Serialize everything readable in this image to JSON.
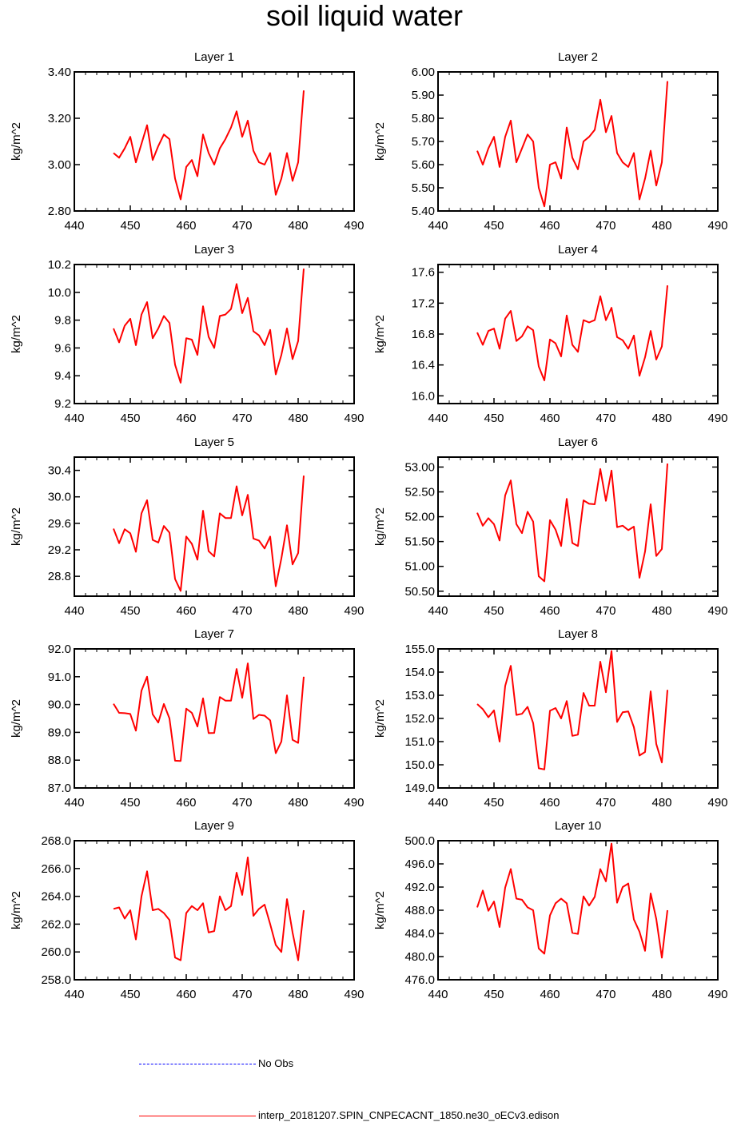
{
  "title": "soil liquid water",
  "legend": {
    "items": [
      {
        "label": "No Obs",
        "color": "#0000ff",
        "style": "dashed"
      },
      {
        "label": "interp_20181207.SPIN_CNPECACNT_1850.ne30_oECv3.edison",
        "color": "#ff0000",
        "style": "solid"
      }
    ]
  },
  "chart_data": [
    {
      "type": "line",
      "title": "Layer 1",
      "xlabel": "",
      "ylabel": "kg/m^2",
      "xlim": [
        440,
        490
      ],
      "xticks": [
        440,
        450,
        460,
        470,
        480,
        490
      ],
      "ylim": [
        2.8,
        3.4
      ],
      "yticks": [
        "2.80",
        "3.00",
        "3.20",
        "3.40"
      ],
      "x": [
        447,
        448,
        449,
        450,
        451,
        452,
        453,
        454,
        455,
        456,
        457,
        458,
        459,
        460,
        461,
        462,
        463,
        464,
        465,
        466,
        467,
        468,
        469,
        470,
        471,
        472,
        473,
        474,
        475,
        476,
        477,
        478,
        479,
        480,
        481
      ],
      "series": [
        {
          "color": "#ff0000",
          "values": [
            3.05,
            3.03,
            3.07,
            3.12,
            3.01,
            3.09,
            3.17,
            3.02,
            3.08,
            3.13,
            3.11,
            2.94,
            2.85,
            2.99,
            3.02,
            2.95,
            3.13,
            3.05,
            3.0,
            3.07,
            3.11,
            3.16,
            3.23,
            3.12,
            3.19,
            3.06,
            3.01,
            3.0,
            3.05,
            2.87,
            2.94,
            3.05,
            2.93,
            3.01,
            3.32
          ]
        }
      ]
    },
    {
      "type": "line",
      "title": "Layer 2",
      "xlabel": "",
      "ylabel": "kg/m^2",
      "xlim": [
        440,
        490
      ],
      "xticks": [
        440,
        450,
        460,
        470,
        480,
        490
      ],
      "ylim": [
        5.4,
        6.0
      ],
      "yticks": [
        "5.40",
        "5.50",
        "5.60",
        "5.70",
        "5.80",
        "5.90",
        "6.00"
      ],
      "x": [
        447,
        448,
        449,
        450,
        451,
        452,
        453,
        454,
        455,
        456,
        457,
        458,
        459,
        460,
        461,
        462,
        463,
        464,
        465,
        466,
        467,
        468,
        469,
        470,
        471,
        472,
        473,
        474,
        475,
        476,
        477,
        478,
        479,
        480,
        481
      ],
      "series": [
        {
          "color": "#ff0000",
          "values": [
            5.66,
            5.6,
            5.67,
            5.72,
            5.59,
            5.72,
            5.79,
            5.61,
            5.67,
            5.73,
            5.7,
            5.5,
            5.42,
            5.6,
            5.61,
            5.54,
            5.76,
            5.63,
            5.58,
            5.7,
            5.72,
            5.75,
            5.88,
            5.74,
            5.81,
            5.65,
            5.61,
            5.59,
            5.65,
            5.45,
            5.54,
            5.66,
            5.51,
            5.61,
            5.96
          ]
        }
      ]
    },
    {
      "type": "line",
      "title": "Layer 3",
      "xlabel": "",
      "ylabel": "kg/m^2",
      "xlim": [
        440,
        490
      ],
      "xticks": [
        440,
        450,
        460,
        470,
        480,
        490
      ],
      "ylim": [
        9.2,
        10.2
      ],
      "yticks": [
        "9.2",
        "9.4",
        "9.6",
        "9.8",
        "10.0",
        "10.2"
      ],
      "x": [
        447,
        448,
        449,
        450,
        451,
        452,
        453,
        454,
        455,
        456,
        457,
        458,
        459,
        460,
        461,
        462,
        463,
        464,
        465,
        466,
        467,
        468,
        469,
        470,
        471,
        472,
        473,
        474,
        475,
        476,
        477,
        478,
        479,
        480,
        481
      ],
      "series": [
        {
          "color": "#ff0000",
          "values": [
            9.74,
            9.64,
            9.76,
            9.81,
            9.62,
            9.84,
            9.93,
            9.67,
            9.74,
            9.83,
            9.78,
            9.48,
            9.35,
            9.67,
            9.66,
            9.55,
            9.9,
            9.68,
            9.6,
            9.83,
            9.84,
            9.88,
            10.06,
            9.85,
            9.96,
            9.72,
            9.69,
            9.62,
            9.73,
            9.41,
            9.55,
            9.74,
            9.52,
            9.65,
            10.17
          ]
        }
      ]
    },
    {
      "type": "line",
      "title": "Layer 4",
      "xlabel": "",
      "ylabel": "kg/m^2",
      "xlim": [
        440,
        490
      ],
      "xticks": [
        440,
        450,
        460,
        470,
        480,
        490
      ],
      "ylim": [
        15.9,
        17.7
      ],
      "yticks": [
        "16.0",
        "16.4",
        "16.8",
        "17.2",
        "17.6"
      ],
      "x": [
        447,
        448,
        449,
        450,
        451,
        452,
        453,
        454,
        455,
        456,
        457,
        458,
        459,
        460,
        461,
        462,
        463,
        464,
        465,
        466,
        467,
        468,
        469,
        470,
        471,
        472,
        473,
        474,
        475,
        476,
        477,
        478,
        479,
        480,
        481
      ],
      "series": [
        {
          "color": "#ff0000",
          "values": [
            16.82,
            16.66,
            16.84,
            16.87,
            16.61,
            17.0,
            17.1,
            16.71,
            16.77,
            16.9,
            16.85,
            16.38,
            16.2,
            16.73,
            16.68,
            16.51,
            17.04,
            16.66,
            16.57,
            16.98,
            16.95,
            16.98,
            17.29,
            16.98,
            17.14,
            16.76,
            16.72,
            16.61,
            16.78,
            16.26,
            16.5,
            16.84,
            16.47,
            16.64,
            17.43
          ]
        }
      ]
    },
    {
      "type": "line",
      "title": "Layer 5",
      "xlabel": "",
      "ylabel": "kg/m^2",
      "xlim": [
        440,
        490
      ],
      "xticks": [
        440,
        450,
        460,
        470,
        480,
        490
      ],
      "ylim": [
        28.5,
        30.6
      ],
      "yticks": [
        "28.8",
        "29.2",
        "29.6",
        "30.0",
        "30.4"
      ],
      "x": [
        447,
        448,
        449,
        450,
        451,
        452,
        453,
        454,
        455,
        456,
        457,
        458,
        459,
        460,
        461,
        462,
        463,
        464,
        465,
        466,
        467,
        468,
        469,
        470,
        471,
        472,
        473,
        474,
        475,
        476,
        477,
        478,
        479,
        480,
        481
      ],
      "series": [
        {
          "color": "#ff0000",
          "values": [
            29.52,
            29.3,
            29.51,
            29.45,
            29.17,
            29.75,
            29.95,
            29.35,
            29.31,
            29.56,
            29.46,
            28.76,
            28.58,
            29.4,
            29.29,
            29.05,
            29.79,
            29.18,
            29.1,
            29.75,
            29.68,
            29.68,
            30.16,
            29.72,
            30.03,
            29.37,
            29.34,
            29.22,
            29.4,
            28.65,
            29.07,
            29.57,
            28.98,
            29.15,
            30.32
          ]
        }
      ]
    },
    {
      "type": "line",
      "title": "Layer 6",
      "xlabel": "",
      "ylabel": "kg/m^2",
      "xlim": [
        440,
        490
      ],
      "xticks": [
        440,
        450,
        460,
        470,
        480,
        490
      ],
      "ylim": [
        50.4,
        53.2
      ],
      "yticks": [
        "50.50",
        "51.00",
        "51.50",
        "52.00",
        "52.50",
        "53.00"
      ],
      "x": [
        447,
        448,
        449,
        450,
        451,
        452,
        453,
        454,
        455,
        456,
        457,
        458,
        459,
        460,
        461,
        462,
        463,
        464,
        465,
        466,
        467,
        468,
        469,
        470,
        471,
        472,
        473,
        474,
        475,
        476,
        477,
        478,
        479,
        480,
        481
      ],
      "series": [
        {
          "color": "#ff0000",
          "values": [
            52.08,
            51.82,
            51.97,
            51.85,
            51.52,
            52.43,
            52.73,
            51.85,
            51.67,
            52.1,
            51.9,
            50.8,
            50.7,
            51.93,
            51.74,
            51.41,
            52.36,
            51.47,
            51.41,
            52.33,
            52.26,
            52.25,
            52.96,
            52.32,
            52.93,
            51.79,
            51.82,
            51.73,
            51.8,
            50.77,
            51.3,
            52.25,
            51.21,
            51.35,
            53.07
          ]
        }
      ]
    },
    {
      "type": "line",
      "title": "Layer 7",
      "xlabel": "",
      "ylabel": "kg/m^2",
      "xlim": [
        440,
        490
      ],
      "xticks": [
        440,
        450,
        460,
        470,
        480,
        490
      ],
      "ylim": [
        87.0,
        92.0
      ],
      "yticks": [
        "87.0",
        "88.0",
        "89.0",
        "90.0",
        "91.0",
        "92.0"
      ],
      "x": [
        447,
        448,
        449,
        450,
        451,
        452,
        453,
        454,
        455,
        456,
        457,
        458,
        459,
        460,
        461,
        462,
        463,
        464,
        465,
        466,
        467,
        468,
        469,
        470,
        471,
        472,
        473,
        474,
        475,
        476,
        477,
        478,
        479,
        480,
        481
      ],
      "series": [
        {
          "color": "#ff0000",
          "values": [
            90.03,
            89.7,
            89.69,
            89.66,
            89.06,
            90.5,
            91.0,
            89.65,
            89.35,
            90.02,
            89.5,
            87.98,
            87.97,
            89.85,
            89.7,
            89.21,
            90.22,
            88.97,
            88.98,
            90.27,
            90.14,
            90.14,
            91.28,
            90.24,
            91.48,
            89.48,
            89.63,
            89.6,
            89.43,
            88.25,
            88.67,
            90.33,
            88.73,
            88.62,
            91.0
          ]
        }
      ]
    },
    {
      "type": "line",
      "title": "Layer 8",
      "xlabel": "",
      "ylabel": "kg/m^2",
      "xlim": [
        440,
        490
      ],
      "xticks": [
        440,
        450,
        460,
        470,
        480,
        490
      ],
      "ylim": [
        149.0,
        155.0
      ],
      "yticks": [
        "149.0",
        "150.0",
        "151.0",
        "152.0",
        "153.0",
        "154.0",
        "155.0"
      ],
      "x": [
        447,
        448,
        449,
        450,
        451,
        452,
        453,
        454,
        455,
        456,
        457,
        458,
        459,
        460,
        461,
        462,
        463,
        464,
        465,
        466,
        467,
        468,
        469,
        470,
        471,
        472,
        473,
        474,
        475,
        476,
        477,
        478,
        479,
        480,
        481
      ],
      "series": [
        {
          "color": "#ff0000",
          "values": [
            152.62,
            152.4,
            152.05,
            152.35,
            151.0,
            153.4,
            154.27,
            152.15,
            152.2,
            152.5,
            151.8,
            149.85,
            149.8,
            152.33,
            152.45,
            152.0,
            152.75,
            151.25,
            151.3,
            153.1,
            152.55,
            152.55,
            154.45,
            153.13,
            154.91,
            151.85,
            152.27,
            152.3,
            151.62,
            150.4,
            150.55,
            153.17,
            150.9,
            150.1,
            153.23
          ]
        }
      ]
    },
    {
      "type": "line",
      "title": "Layer 9",
      "xlabel": "",
      "ylabel": "kg/m^2",
      "xlim": [
        440,
        490
      ],
      "xticks": [
        440,
        450,
        460,
        470,
        480,
        490
      ],
      "ylim": [
        258.0,
        268.0
      ],
      "yticks": [
        "258.0",
        "260.0",
        "262.0",
        "264.0",
        "266.0",
        "268.0"
      ],
      "x": [
        447,
        448,
        449,
        450,
        451,
        452,
        453,
        454,
        455,
        456,
        457,
        458,
        459,
        460,
        461,
        462,
        463,
        464,
        465,
        466,
        467,
        468,
        469,
        470,
        471,
        472,
        473,
        474,
        475,
        476,
        477,
        478,
        479,
        480,
        481
      ],
      "series": [
        {
          "color": "#ff0000",
          "values": [
            263.1,
            263.2,
            262.4,
            263.0,
            260.9,
            264.0,
            265.8,
            263.0,
            263.1,
            262.8,
            262.3,
            259.6,
            259.4,
            262.8,
            263.3,
            263.0,
            263.5,
            261.4,
            261.5,
            264.0,
            263.0,
            263.3,
            265.7,
            264.1,
            266.8,
            262.6,
            263.1,
            263.4,
            262.0,
            260.5,
            260.0,
            263.8,
            261.4,
            259.4,
            263.0
          ]
        }
      ]
    },
    {
      "type": "line",
      "title": "Layer 10",
      "xlabel": "",
      "ylabel": "kg/m^2",
      "xlim": [
        440,
        490
      ],
      "xticks": [
        440,
        450,
        460,
        470,
        480,
        490
      ],
      "ylim": [
        476.0,
        500.0
      ],
      "yticks": [
        "476.0",
        "480.0",
        "484.0",
        "488.0",
        "492.0",
        "496.0",
        "500.0"
      ],
      "x": [
        447,
        448,
        449,
        450,
        451,
        452,
        453,
        454,
        455,
        456,
        457,
        458,
        459,
        460,
        461,
        462,
        463,
        464,
        465,
        466,
        467,
        468,
        469,
        470,
        471,
        472,
        473,
        474,
        475,
        476,
        477,
        478,
        479,
        480,
        481
      ],
      "series": [
        {
          "color": "#ff0000",
          "values": [
            488.5,
            491.4,
            487.9,
            489.5,
            485.1,
            491.9,
            495.1,
            490.0,
            489.8,
            488.5,
            488.0,
            481.4,
            480.5,
            487.1,
            489.2,
            490.0,
            489.2,
            484.1,
            483.9,
            490.4,
            488.8,
            490.3,
            495.1,
            493.0,
            499.5,
            489.3,
            492.0,
            492.6,
            486.4,
            484.3,
            481.0,
            490.9,
            486.5,
            479.8,
            488.0
          ]
        }
      ]
    }
  ]
}
